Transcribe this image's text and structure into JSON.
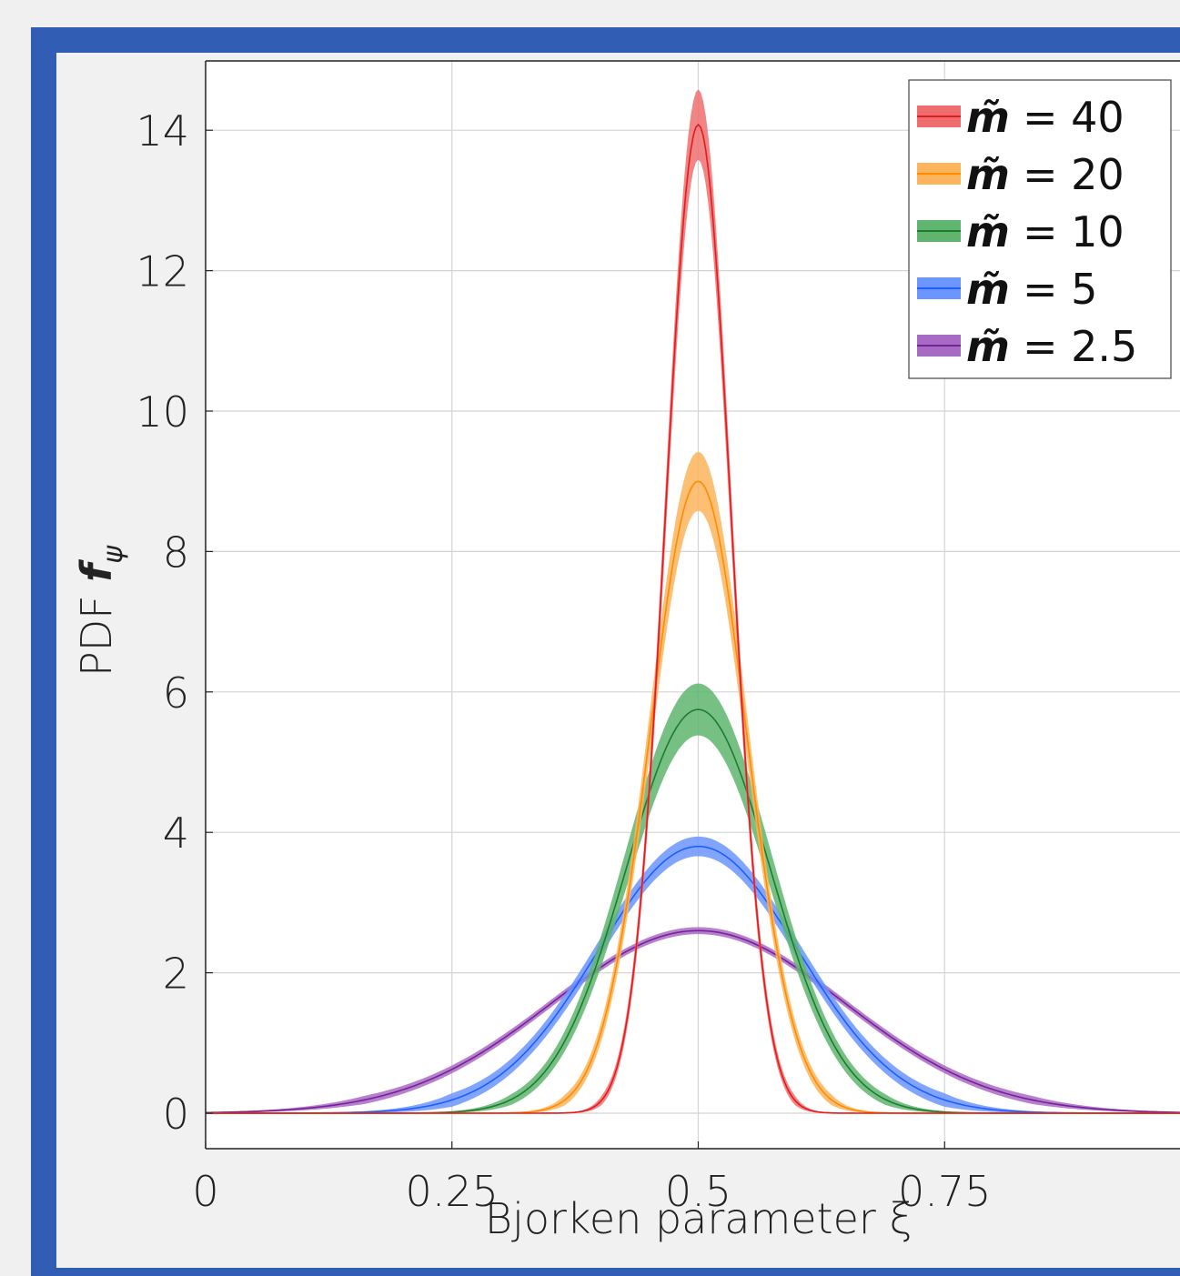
{
  "colors": {
    "frame": "#315eb4",
    "background": "#f1f1f1",
    "plot_background": "#ffffff",
    "grid": "#d4d4d4"
  },
  "chart_data": {
    "type": "line",
    "title": "",
    "xlabel": "Bjorken parameter ξ",
    "ylabel": "PDF f_ψ",
    "ylabel_main": "PDF ",
    "ylabel_symbol": "f",
    "ylabel_subscript": "ψ",
    "xlim": [
      0,
      1
    ],
    "ylim": [
      -0.5,
      14.95
    ],
    "x_ticks": [
      0,
      0.25,
      0.5,
      0.75
    ],
    "x_tick_labels": [
      "0",
      "0.25",
      "0.5",
      "0.75"
    ],
    "y_ticks": [
      0,
      2,
      4,
      6,
      8,
      10,
      12,
      14
    ],
    "y_tick_labels": [
      "0",
      "2",
      "4",
      "6",
      "8",
      "10",
      "12",
      "14"
    ],
    "grid": true,
    "legend_position": "top-right",
    "series": [
      {
        "name": "m̃ = 40",
        "label_sym": "m̃",
        "label_val": "= 40",
        "color": "#e41a1c",
        "band_color": "#ee6e70",
        "center": 0.5,
        "peak": 14.08,
        "width": 0.0333,
        "peak_band": 0.5,
        "tail_band": 0.045
      },
      {
        "name": "m̃ = 20",
        "label_sym": "m̃",
        "label_val": "= 20",
        "color": "#ff8c00",
        "band_color": "#fdb45c",
        "center": 0.5,
        "peak": 9.0,
        "width": 0.0487,
        "peak_band": 0.42,
        "tail_band": 0.05
      },
      {
        "name": "m̃ = 10",
        "label_sym": "m̃",
        "label_val": "= 10",
        "color": "#1e7b32",
        "band_color": "#5fb56e",
        "center": 0.5,
        "peak": 5.75,
        "width": 0.073,
        "peak_band": 0.37,
        "tail_band": 0.045
      },
      {
        "name": "m̃ = 5",
        "label_sym": "m̃",
        "label_val": "= 5",
        "color": "#1e5eff",
        "band_color": "#6b95ff",
        "center": 0.5,
        "peak": 3.8,
        "width": 0.102,
        "peak_band": 0.14,
        "tail_band": 0.09
      },
      {
        "name": "m̃ = 2.5",
        "label_sym": "m̃",
        "label_val": "= 2.5",
        "color": "#7a1f9a",
        "band_color": "#a86bc4",
        "center": 0.5,
        "peak": 2.6,
        "width": 0.148,
        "peak_band": 0.05,
        "tail_band": 0.06
      }
    ]
  }
}
